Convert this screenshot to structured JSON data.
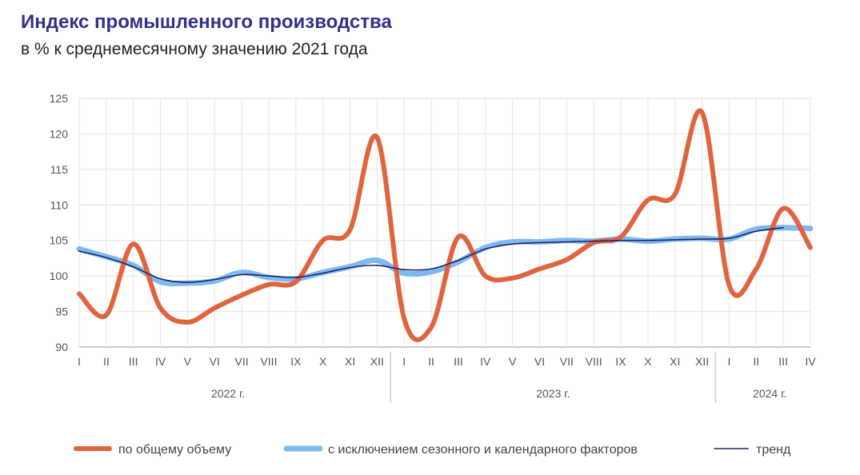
{
  "chart_data": {
    "type": "line",
    "title": "Индекс промышленного производства",
    "subtitle": "в % к среднемесячному значению 2021 года",
    "xlabel": "",
    "ylabel": "",
    "ylim": [
      90,
      125
    ],
    "yticks": [
      "90",
      "95",
      "100",
      "105",
      "110",
      "115",
      "120",
      "125"
    ],
    "grid": true,
    "legend_position": "bottom",
    "categories": [
      "I",
      "II",
      "III",
      "IV",
      "V",
      "VI",
      "VII",
      "VIII",
      "IX",
      "X",
      "XI",
      "XII",
      "I",
      "II",
      "III",
      "IV",
      "V",
      "VI",
      "VII",
      "VIII",
      "IX",
      "X",
      "XI",
      "XII",
      "I",
      "II",
      "III",
      "IV"
    ],
    "years": [
      {
        "label": "2022 г.",
        "months": 12
      },
      {
        "label": "2023 г.",
        "months": 12
      },
      {
        "label": "2024 г.",
        "months": 4
      }
    ],
    "series": [
      {
        "name": "по общему объему",
        "color": "#e0643f",
        "width": 6,
        "values": [
          97.5,
          94.5,
          104.5,
          95.5,
          93.5,
          95.5,
          97.3,
          98.8,
          99.2,
          105,
          106.5,
          119.5,
          94,
          92.8,
          105.5,
          100,
          99.7,
          101,
          102.3,
          104.7,
          105.5,
          110.7,
          111.5,
          123,
          98.7,
          101,
          109.5,
          104
        ]
      },
      {
        "name": "с исключением сезонного и календарного факторов",
        "color": "#7eb9f0",
        "width": 7,
        "values": [
          103.8,
          102.7,
          101.5,
          99.2,
          99,
          99.3,
          100.5,
          99.8,
          99.6,
          100.5,
          101.3,
          102.2,
          100.4,
          100.6,
          102,
          104,
          104.8,
          104.8,
          105,
          104.9,
          105.2,
          104.9,
          105.2,
          105.3,
          105.2,
          106.6,
          106.8,
          106.7
        ]
      },
      {
        "name": "тренд",
        "color": "#1f2768",
        "width": 1.6,
        "values": [
          103.5,
          102.6,
          101.3,
          99.6,
          99.1,
          99.5,
          100.2,
          100,
          99.8,
          100.4,
          101.2,
          101.5,
          100.9,
          101,
          102.2,
          103.8,
          104.5,
          104.7,
          104.8,
          104.9,
          105,
          105,
          105.1,
          105.2,
          105.3,
          106.3,
          106.8,
          null
        ]
      }
    ]
  }
}
